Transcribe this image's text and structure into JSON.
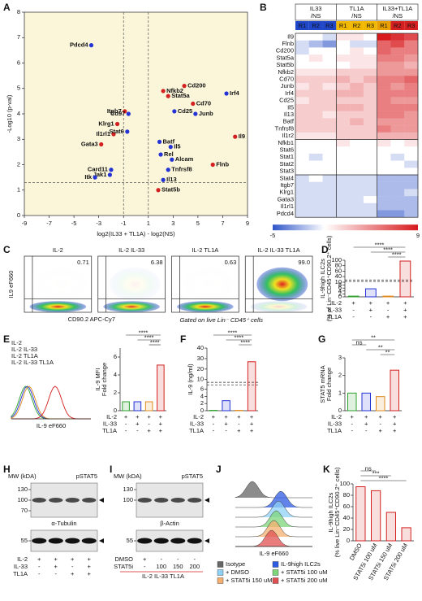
{
  "chart_data": [
    {
      "type": "scatter",
      "panel": "A",
      "xlabel": "log2(IL33 + TL1A) - log2(NS)",
      "ylabel": "-Log10 (p-val)",
      "xlim": [
        -9,
        9
      ],
      "xticks": [
        -9,
        -7,
        -5,
        -3,
        -1,
        1,
        3,
        5,
        7,
        9
      ],
      "ylim": [
        0,
        8
      ],
      "yticks": [
        0,
        1,
        2,
        3,
        4,
        5,
        6,
        7,
        8
      ],
      "vlines": [
        -1,
        1
      ],
      "hline": 1.3,
      "background": "#fbf6d9",
      "labels": [
        "Pdcd4",
        "Irf4",
        "Il9",
        "Flnb",
        "Cd200",
        "Nfkb2",
        "Stat5a",
        "Cd70",
        "Cd25",
        "Junb",
        "Itgb7",
        "Cd97",
        "Klrg1",
        "Il1rl1",
        "Stat6",
        "Gata3",
        "Batf",
        "Il5",
        "Rel",
        "Alcam",
        "Tnfrsf8",
        "Card11",
        "Jak1",
        "Itk",
        "Il13",
        "Stat5b"
      ],
      "x": [
        -3.6,
        7.3,
        8.0,
        6.2,
        3.9,
        2.2,
        2.6,
        4.6,
        3.1,
        4.8,
        -0.9,
        -0.6,
        -1.5,
        -1.8,
        -0.7,
        -2.8,
        1.9,
        2.8,
        2.0,
        2.9,
        2.6,
        -2.0,
        -2.1,
        -3.3,
        2.2,
        1.8
      ],
      "values": [
        6.7,
        4.8,
        3.1,
        2.0,
        5.1,
        4.9,
        4.7,
        4.4,
        4.1,
        4.0,
        4.1,
        4.0,
        3.6,
        3.2,
        3.3,
        2.8,
        2.9,
        2.7,
        2.4,
        2.2,
        1.8,
        1.8,
        1.6,
        1.5,
        1.4,
        1.0
      ],
      "colors": [
        "#2433d6",
        "#2433d6",
        "#d42020",
        "#d42020",
        "#d42020",
        "#d42020",
        "#d42020",
        "#d42020",
        "#2433d6",
        "#2433d6",
        "#d42020",
        "#2433d6",
        "#d42020",
        "#d42020",
        "#2433d6",
        "#d42020",
        "#2433d6",
        "#2433d6",
        "#2433d6",
        "#2433d6",
        "#2433d6",
        "#2433d6",
        "#2433d6",
        "#2433d6",
        "#2433d6",
        "#d42020"
      ]
    },
    {
      "type": "heatmap",
      "panel": "B",
      "groups": [
        {
          "name": "IL33",
          "sub": "/NS",
          "colors": [
            "#2046c8",
            "#2046c8",
            "#2046c8"
          ]
        },
        {
          "name": "TL1A",
          "sub": "/NS",
          "colors": [
            "#f2b800",
            "#f2b800",
            "#f2b800"
          ]
        },
        {
          "name": "IL33+TL1A",
          "sub": "/NS",
          "colors": [
            "#e8a000",
            "#d42020",
            "#d42020"
          ]
        }
      ],
      "replicates": [
        "R1",
        "R2",
        "R3"
      ],
      "rows": [
        "Il9",
        "Flnb",
        "Cd200",
        "Stat5a",
        "Stat5b",
        "Nfkb2",
        "Cd70",
        "Junb",
        "Irf4",
        "Cd25",
        "Il5",
        "Il13",
        "Batf",
        "Tnfrsf8",
        "Il1r2",
        "Nfkb1",
        "Stat6",
        "Stat1",
        "Stat2",
        "Stat3",
        "Stat4",
        "Itgb7",
        "Klrg1",
        "Gata3",
        "Il1rl1",
        "Pdcd4"
      ],
      "row_groups": [
        15,
        5,
        6
      ],
      "values": [
        [
          0,
          0,
          -1,
          1,
          1,
          0,
          9,
          8,
          7
        ],
        [
          -1,
          -2,
          -3,
          0,
          -1,
          -1,
          6,
          7,
          5
        ],
        [
          -1,
          0,
          0,
          0,
          1,
          0,
          6,
          5,
          5
        ],
        [
          0,
          1,
          0,
          1,
          1,
          1,
          5,
          5,
          4
        ],
        [
          0,
          0,
          0,
          0,
          1,
          1,
          4,
          4,
          3
        ],
        [
          1,
          1,
          1,
          2,
          2,
          2,
          4,
          4,
          4
        ],
        [
          2,
          2,
          2,
          3,
          2,
          3,
          5,
          5,
          6
        ],
        [
          1,
          2,
          1,
          2,
          3,
          2,
          5,
          4,
          5
        ],
        [
          2,
          2,
          2,
          3,
          3,
          2,
          5,
          5,
          5
        ],
        [
          1,
          2,
          2,
          2,
          2,
          2,
          5,
          4,
          4
        ],
        [
          2,
          2,
          2,
          3,
          3,
          2,
          5,
          5,
          5
        ],
        [
          2,
          2,
          1,
          2,
          2,
          2,
          5,
          5,
          4
        ],
        [
          2,
          2,
          2,
          2,
          3,
          2,
          4,
          4,
          4
        ],
        [
          2,
          2,
          2,
          2,
          2,
          2,
          5,
          4,
          4
        ],
        [
          1,
          1,
          1,
          2,
          2,
          2,
          3,
          3,
          3
        ],
        [
          0,
          0,
          0,
          1,
          0,
          0,
          1,
          0,
          1
        ],
        [
          0,
          0,
          0,
          0,
          0,
          0,
          0,
          0,
          0
        ],
        [
          0,
          -1,
          0,
          0,
          0,
          0,
          0,
          -1,
          0
        ],
        [
          0,
          0,
          0,
          0,
          0,
          0,
          0,
          0,
          -1
        ],
        [
          0,
          0,
          0,
          0,
          0,
          0,
          0,
          0,
          0
        ],
        [
          -1,
          0,
          -1,
          -1,
          -1,
          -1,
          -2,
          -2,
          -2
        ],
        [
          -1,
          -1,
          -1,
          -1,
          -1,
          -1,
          -2,
          -2,
          -2
        ],
        [
          -1,
          -1,
          -1,
          -1,
          -1,
          -1,
          -2,
          -2,
          -1
        ],
        [
          -1,
          -1,
          -1,
          -1,
          -1,
          0,
          -2,
          -2,
          -2
        ],
        [
          -1,
          -1,
          -1,
          -1,
          -1,
          -1,
          -2,
          -2,
          -2
        ],
        [
          -1,
          -1,
          -1,
          -1,
          -1,
          -1,
          -3,
          -3,
          -2
        ]
      ],
      "clim": [
        -5,
        9
      ],
      "cticks": [
        -5,
        9
      ],
      "low_color": "#2f55c8",
      "high_color": "#d7191c"
    },
    {
      "type": "flow",
      "panel": "C",
      "titles": [
        "IL-2",
        "IL-2 IL-33",
        "IL-2 TL1A",
        "IL-2 IL-33 TL1A"
      ],
      "colors": [
        "#2ca02c",
        "#2433d6",
        "#e08a1e",
        "#d42020"
      ],
      "values": [
        0.71,
        6.38,
        0.63,
        99.0
      ],
      "value_labels": [
        "0.71",
        "6.38",
        "0.63",
        "99.0"
      ],
      "xlabel": "CD90.2 APC-Cy7",
      "ylabel": "IL9 eF660",
      "note": "Gated on live Lin⁻ CD45⁺ cells"
    },
    {
      "type": "bar",
      "panel": "D",
      "ylabel": "IL-9high ILC2s",
      "ylabel2": "(% of Lin⁻CD45⁺CD90.2⁺ cells)",
      "categories": [
        null,
        null,
        null,
        null
      ],
      "values": [
        0.5,
        5.5,
        0.5,
        97
      ],
      "colors": [
        "#2ca02c",
        "#2433d6",
        "#e08a1e",
        "#d42020"
      ],
      "ylim": [
        0,
        100
      ],
      "ybreak": [
        10,
        30
      ],
      "yticks": [
        0,
        2,
        4,
        6,
        8,
        10,
        40,
        60,
        80,
        100
      ],
      "conditions": [
        {
          "name": "IL-2",
          "marks": [
            "+",
            "+",
            "+",
            "+"
          ]
        },
        {
          "name": "IL-33",
          "marks": [
            "-",
            "+",
            "-",
            "+"
          ]
        },
        {
          "name": "TL1A",
          "marks": [
            "-",
            "-",
            "+",
            "+"
          ]
        }
      ],
      "significance": [
        {
          "pair": [
            0,
            3
          ],
          "label": "****"
        },
        {
          "pair": [
            1,
            3
          ],
          "label": "****"
        },
        {
          "pair": [
            2,
            3
          ],
          "label": "****"
        }
      ]
    },
    {
      "type": "bar",
      "panel": "E",
      "legend": [
        {
          "name": "IL-2",
          "color": "#2ca02c"
        },
        {
          "name": "IL-2 IL-33",
          "color": "#2433d6"
        },
        {
          "name": "IL-2 TL1A",
          "color": "#e08a1e"
        },
        {
          "name": "IL-2 IL-33 TL1A",
          "color": "#d42020"
        }
      ],
      "hist_xlabel": "IL-9 eF660",
      "ylabel": "IL-9 MFI",
      "ylabel2": "Fold change",
      "categories": [
        null,
        null,
        null,
        null
      ],
      "values": [
        1,
        1,
        1,
        5.1
      ],
      "colors": [
        "#2ca02c",
        "#2433d6",
        "#e08a1e",
        "#d42020"
      ],
      "ylim": [
        0,
        7
      ],
      "yticks": [
        0,
        2,
        4,
        6
      ],
      "conditions": [
        {
          "name": "IL-2",
          "marks": [
            "+",
            "+",
            "+",
            "+"
          ]
        },
        {
          "name": "IL-33",
          "marks": [
            "-",
            "+",
            "-",
            "+"
          ]
        },
        {
          "name": "TL1A",
          "marks": [
            "-",
            "-",
            "+",
            "+"
          ]
        }
      ],
      "significance": [
        {
          "pair": [
            0,
            3
          ],
          "label": "****"
        },
        {
          "pair": [
            1,
            3
          ],
          "label": "****"
        },
        {
          "pair": [
            2,
            3
          ],
          "label": "****"
        }
      ]
    },
    {
      "type": "bar",
      "panel": "F",
      "ylabel": "IL-9 (ng/ml)",
      "categories": [
        null,
        null,
        null,
        null
      ],
      "values": [
        0.1,
        2.8,
        0.1,
        27
      ],
      "colors": [
        "#2ca02c",
        "#2433d6",
        "#e08a1e",
        "#d42020"
      ],
      "ylim": [
        0,
        40
      ],
      "ybreak": [
        7,
        9
      ],
      "yticks": [
        0,
        2,
        4,
        6,
        10,
        20,
        30,
        40
      ],
      "conditions": [
        {
          "name": "IL-2",
          "marks": [
            "+",
            "+",
            "+",
            "+"
          ]
        },
        {
          "name": "IL-33",
          "marks": [
            "-",
            "+",
            "-",
            "+"
          ]
        },
        {
          "name": "TL1A",
          "marks": [
            "-",
            "-",
            "+",
            "+"
          ]
        }
      ],
      "significance": [
        {
          "pair": [
            0,
            3
          ],
          "label": "****"
        },
        {
          "pair": [
            1,
            3
          ],
          "label": "****"
        },
        {
          "pair": [
            2,
            3
          ],
          "label": "****"
        }
      ]
    },
    {
      "type": "bar",
      "panel": "G",
      "ylabel": "STAT5 mRNA",
      "ylabel2": "Fold change",
      "categories": [
        null,
        null,
        null,
        null
      ],
      "values": [
        1,
        1,
        0.8,
        2.3
      ],
      "colors": [
        "#2ca02c",
        "#2433d6",
        "#e08a1e",
        "#d42020"
      ],
      "ylim": [
        0,
        3
      ],
      "yticks": [
        0,
        1,
        2,
        3
      ],
      "conditions": [
        {
          "name": "IL-2",
          "marks": [
            "+",
            "+",
            "+",
            "+"
          ]
        },
        {
          "name": "IL-33",
          "marks": [
            "-",
            "+",
            "-",
            "+"
          ]
        },
        {
          "name": "TL1A",
          "marks": [
            "-",
            "-",
            "+",
            "+"
          ]
        }
      ],
      "significance": [
        {
          "pair": [
            0,
            3
          ],
          "label": "**"
        },
        {
          "pair": [
            0,
            1
          ],
          "label": "ns"
        },
        {
          "pair": [
            1,
            3
          ],
          "label": "**"
        },
        {
          "pair": [
            2,
            3
          ],
          "label": "**"
        }
      ]
    },
    {
      "type": "blot",
      "panel": "H",
      "mw_label": "MW (kDA)",
      "top_label": "pSTAT5",
      "bottom_label": "α-Tubulin",
      "top_mw": [
        130,
        100,
        70
      ],
      "bottom_mw": [
        55
      ],
      "conditions": [
        {
          "name": "IL-2",
          "marks": [
            "+",
            "+",
            "+",
            "+"
          ]
        },
        {
          "name": "IL-33",
          "marks": [
            "-",
            "+",
            "-",
            "+"
          ]
        },
        {
          "name": "TL1A",
          "marks": [
            "-",
            "-",
            "+",
            "+"
          ]
        }
      ]
    },
    {
      "type": "blot",
      "panel": "I",
      "mw_label": "MW (kDA)",
      "top_label": "pSTAT5",
      "bottom_label": "β-Actin",
      "top_mw": [
        130,
        100
      ],
      "bottom_mw": [
        55
      ],
      "conditions": [
        {
          "name": "DMSO",
          "marks": [
            "+",
            "-",
            "-",
            "-"
          ]
        },
        {
          "name": "STAT5i",
          "marks": [
            "-",
            "100",
            "150",
            "200"
          ]
        }
      ],
      "footer": "IL-2 IL-33 TL1A"
    },
    {
      "type": "histogram",
      "panel": "J",
      "xlabel": "IL-9 eF660",
      "legend": [
        {
          "name": "Isotype",
          "color": "#666666"
        },
        {
          "name": "IL-9high ILC2s",
          "color": "#2d5be3"
        },
        {
          "name": "+ DMSO",
          "color": "#8fd0f5"
        },
        {
          "name": "+ STAT5i 100 uM",
          "color": "#7ed67a"
        },
        {
          "name": "+ STAT5i 150 uM",
          "color": "#f5b070"
        },
        {
          "name": "+ STAT5i 200 uM",
          "color": "#e05050"
        }
      ]
    },
    {
      "type": "bar",
      "panel": "K",
      "ylabel": "IL-9high ILC2s",
      "ylabel2": "(% live Lin⁻CD45⁺CD90.2⁺ cells)",
      "categories": [
        "DMSO",
        "STAT5i 100 uM",
        "STAT5i 150 uM",
        "STAT5i 200 uM"
      ],
      "values": [
        95,
        88,
        50,
        23
      ],
      "colors": [
        "#d42020",
        "#d42020",
        "#d42020",
        "#d42020"
      ],
      "ylim": [
        0,
        100
      ],
      "yticks": [
        0,
        20,
        40,
        60,
        80,
        100
      ],
      "significance": [
        {
          "pair": [
            0,
            1
          ],
          "label": "ns"
        },
        {
          "pair": [
            0,
            2
          ],
          "label": "***"
        },
        {
          "pair": [
            0,
            3
          ],
          "label": "****"
        }
      ]
    }
  ]
}
